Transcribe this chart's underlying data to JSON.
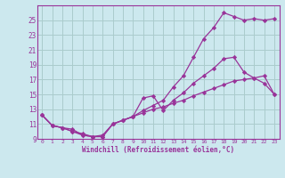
{
  "xlabel": "Windchill (Refroidissement éolien,°C)",
  "bg_color": "#cce8ee",
  "grid_color": "#aacccc",
  "line_color": "#993399",
  "marker": "D",
  "markersize": 2.2,
  "linewidth": 0.9,
  "xlim": [
    -0.5,
    23.5
  ],
  "ylim": [
    9,
    27
  ],
  "yticks": [
    9,
    11,
    13,
    15,
    17,
    19,
    21,
    23,
    25
  ],
  "xticks": [
    0,
    1,
    2,
    3,
    4,
    5,
    6,
    7,
    8,
    9,
    10,
    11,
    12,
    13,
    14,
    15,
    16,
    17,
    18,
    19,
    20,
    21,
    22,
    23
  ],
  "curve1_x": [
    0,
    1,
    2,
    3,
    4,
    5,
    6,
    7,
    8,
    9,
    10,
    11,
    12,
    13,
    14,
    15,
    16,
    17,
    18,
    19,
    20,
    21,
    22,
    23
  ],
  "curve1_y": [
    12.2,
    10.8,
    10.5,
    10.3,
    9.5,
    9.3,
    9.5,
    11.0,
    11.5,
    12.0,
    12.8,
    13.5,
    14.2,
    16.0,
    17.5,
    20.0,
    22.5,
    24.0,
    26.0,
    25.5,
    25.0,
    25.2,
    25.0,
    25.2
  ],
  "curve2_x": [
    0,
    1,
    2,
    3,
    4,
    5,
    6,
    7,
    8,
    9,
    10,
    11,
    12,
    13,
    14,
    15,
    16,
    17,
    18,
    19,
    20,
    21,
    22,
    23
  ],
  "curve2_y": [
    12.2,
    10.8,
    10.5,
    10.0,
    9.7,
    9.3,
    9.3,
    11.0,
    11.5,
    12.0,
    14.5,
    14.8,
    12.8,
    14.2,
    15.2,
    16.5,
    17.5,
    18.5,
    19.8,
    20.0,
    18.0,
    17.2,
    16.5,
    15.0
  ],
  "curve3_x": [
    0,
    1,
    2,
    3,
    4,
    5,
    6,
    7,
    8,
    9,
    10,
    11,
    12,
    13,
    14,
    15,
    16,
    17,
    18,
    19,
    20,
    21,
    22,
    23
  ],
  "curve3_y": [
    12.2,
    10.8,
    10.5,
    10.0,
    9.5,
    9.3,
    9.3,
    11.0,
    11.5,
    12.0,
    12.5,
    13.0,
    13.3,
    13.8,
    14.2,
    14.8,
    15.3,
    15.8,
    16.3,
    16.8,
    17.0,
    17.2,
    17.5,
    15.0
  ]
}
